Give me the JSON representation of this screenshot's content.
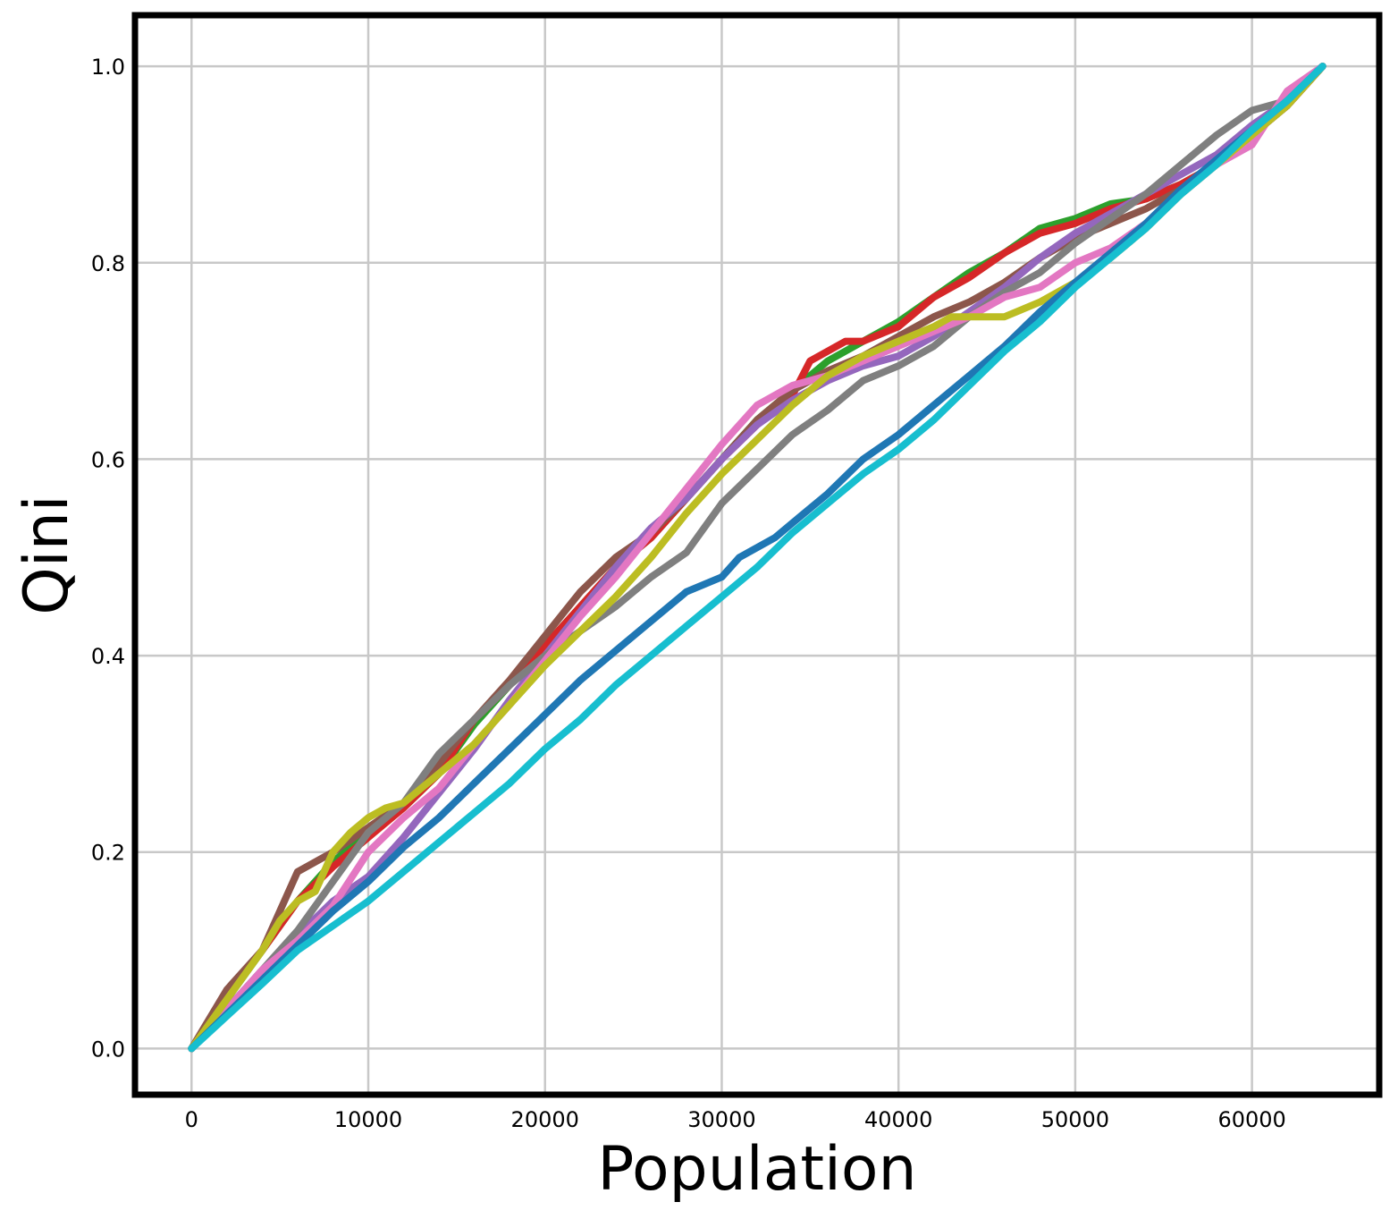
{
  "chart_data": {
    "type": "line",
    "title": "",
    "xlabel": "Population",
    "ylabel": "Qini",
    "xlim": [
      -3200,
      67200
    ],
    "ylim": [
      -0.047,
      1.052
    ],
    "xticks": [
      0,
      10000,
      20000,
      30000,
      40000,
      50000,
      60000
    ],
    "xtick_labels": [
      "0",
      "10000",
      "20000",
      "30000",
      "40000",
      "50000",
      "60000"
    ],
    "yticks": [
      0.0,
      0.2,
      0.4,
      0.6,
      0.8,
      1.0
    ],
    "ytick_labels": [
      "0.0",
      "0.2",
      "0.4",
      "0.6",
      "0.8",
      "1.0"
    ],
    "grid": true,
    "legend": "none",
    "series": [
      {
        "color": "#2ca02c",
        "x": [
          0,
          2000,
          4000,
          6000,
          8000,
          10000,
          12000,
          14000,
          16000,
          18000,
          20000,
          22000,
          24000,
          26000,
          28000,
          30000,
          32000,
          34000,
          36000,
          38000,
          40000,
          42000,
          44000,
          46000,
          48000,
          50000,
          52000,
          54000,
          56000,
          58000,
          60000,
          62000,
          64000
        ],
        "y": [
          0,
          0.05,
          0.1,
          0.15,
          0.19,
          0.22,
          0.245,
          0.28,
          0.33,
          0.37,
          0.41,
          0.45,
          0.49,
          0.52,
          0.56,
          0.6,
          0.64,
          0.67,
          0.7,
          0.72,
          0.74,
          0.765,
          0.79,
          0.81,
          0.835,
          0.845,
          0.86,
          0.865,
          0.88,
          0.9,
          0.93,
          0.96,
          1.0
        ]
      },
      {
        "color": "#d62728",
        "x": [
          0,
          2000,
          4000,
          6000,
          8000,
          10000,
          12000,
          14000,
          16000,
          18000,
          20000,
          22000,
          24000,
          26000,
          28000,
          30000,
          32000,
          34000,
          35000,
          36000,
          37000,
          38000,
          40000,
          42000,
          44000,
          46000,
          48000,
          50000,
          52000,
          54000,
          56000,
          58000,
          60000,
          62000,
          63000,
          64000
        ],
        "y": [
          0,
          0.055,
          0.1,
          0.15,
          0.185,
          0.215,
          0.245,
          0.28,
          0.335,
          0.37,
          0.41,
          0.45,
          0.49,
          0.52,
          0.56,
          0.6,
          0.635,
          0.665,
          0.7,
          0.71,
          0.72,
          0.72,
          0.735,
          0.765,
          0.785,
          0.81,
          0.83,
          0.84,
          0.855,
          0.865,
          0.88,
          0.9,
          0.93,
          0.96,
          0.98,
          1.0
        ]
      },
      {
        "color": "#8c564b",
        "x": [
          0,
          2000,
          4000,
          6000,
          8000,
          10000,
          12000,
          14000,
          16000,
          18000,
          20000,
          22000,
          24000,
          26000,
          28000,
          30000,
          32000,
          34000,
          36000,
          38000,
          40000,
          42000,
          44000,
          46000,
          48000,
          50000,
          52000,
          54000,
          56000,
          58000,
          60000,
          62000,
          64000
        ],
        "y": [
          0,
          0.06,
          0.1,
          0.18,
          0.2,
          0.225,
          0.25,
          0.29,
          0.335,
          0.375,
          0.42,
          0.465,
          0.5,
          0.525,
          0.56,
          0.6,
          0.64,
          0.67,
          0.69,
          0.705,
          0.725,
          0.745,
          0.76,
          0.78,
          0.805,
          0.825,
          0.84,
          0.855,
          0.875,
          0.9,
          0.93,
          0.96,
          1.0
        ]
      },
      {
        "color": "#9467bd",
        "x": [
          0,
          2000,
          4000,
          6000,
          8000,
          10000,
          12000,
          14000,
          16000,
          18000,
          20000,
          22000,
          24000,
          26000,
          28000,
          30000,
          32000,
          34000,
          36000,
          38000,
          40000,
          42000,
          44000,
          46000,
          48000,
          50000,
          52000,
          54000,
          56000,
          58000,
          60000,
          62000,
          64000
        ],
        "y": [
          0,
          0.04,
          0.08,
          0.115,
          0.15,
          0.175,
          0.215,
          0.26,
          0.305,
          0.355,
          0.4,
          0.445,
          0.49,
          0.53,
          0.56,
          0.6,
          0.635,
          0.66,
          0.68,
          0.695,
          0.705,
          0.725,
          0.75,
          0.775,
          0.805,
          0.83,
          0.85,
          0.87,
          0.89,
          0.91,
          0.94,
          0.965,
          1.0
        ]
      },
      {
        "color": "#7f7f7f",
        "x": [
          0,
          2000,
          4000,
          6000,
          8000,
          10000,
          12000,
          14000,
          16000,
          18000,
          20000,
          22000,
          24000,
          26000,
          28000,
          30000,
          32000,
          34000,
          36000,
          38000,
          40000,
          42000,
          44000,
          46000,
          48000,
          50000,
          52000,
          54000,
          56000,
          58000,
          60000,
          62000,
          64000
        ],
        "y": [
          0,
          0.04,
          0.08,
          0.12,
          0.17,
          0.22,
          0.25,
          0.3,
          0.335,
          0.37,
          0.4,
          0.425,
          0.45,
          0.48,
          0.505,
          0.555,
          0.59,
          0.625,
          0.65,
          0.68,
          0.695,
          0.715,
          0.745,
          0.77,
          0.79,
          0.82,
          0.845,
          0.87,
          0.9,
          0.93,
          0.955,
          0.965,
          1.0
        ]
      },
      {
        "color": "#e377c2",
        "x": [
          0,
          2000,
          4000,
          6000,
          8000,
          10000,
          12000,
          14000,
          16000,
          18000,
          20000,
          22000,
          24000,
          26000,
          28000,
          30000,
          32000,
          34000,
          36000,
          38000,
          40000,
          42000,
          44000,
          46000,
          48000,
          50000,
          52000,
          54000,
          56000,
          58000,
          60000,
          62000,
          64000
        ],
        "y": [
          0,
          0.04,
          0.08,
          0.11,
          0.145,
          0.2,
          0.235,
          0.265,
          0.31,
          0.35,
          0.395,
          0.44,
          0.48,
          0.525,
          0.57,
          0.615,
          0.655,
          0.675,
          0.685,
          0.7,
          0.715,
          0.73,
          0.745,
          0.765,
          0.775,
          0.8,
          0.815,
          0.84,
          0.87,
          0.9,
          0.92,
          0.975,
          1.0
        ]
      },
      {
        "color": "#bcbd22",
        "x": [
          0,
          2000,
          4000,
          5000,
          6000,
          7000,
          8000,
          9000,
          10000,
          11000,
          12000,
          14000,
          16000,
          18000,
          20000,
          22000,
          24000,
          26000,
          28000,
          30000,
          32000,
          34000,
          36000,
          38000,
          40000,
          42000,
          43000,
          44000,
          45000,
          46000,
          48000,
          50000,
          52000,
          54000,
          56000,
          58000,
          60000,
          62000,
          64000
        ],
        "y": [
          0,
          0.05,
          0.1,
          0.13,
          0.15,
          0.16,
          0.2,
          0.22,
          0.235,
          0.245,
          0.25,
          0.28,
          0.31,
          0.35,
          0.39,
          0.425,
          0.46,
          0.5,
          0.545,
          0.585,
          0.62,
          0.655,
          0.685,
          0.705,
          0.72,
          0.735,
          0.745,
          0.745,
          0.745,
          0.745,
          0.76,
          0.78,
          0.805,
          0.835,
          0.87,
          0.9,
          0.93,
          0.96,
          1.0
        ]
      },
      {
        "color": "#1f77b4",
        "x": [
          0,
          2000,
          4000,
          6000,
          8000,
          10000,
          12000,
          14000,
          16000,
          18000,
          20000,
          22000,
          24000,
          26000,
          28000,
          30000,
          31000,
          32000,
          33000,
          34000,
          36000,
          38000,
          40000,
          42000,
          44000,
          46000,
          48000,
          50000,
          52000,
          54000,
          56000,
          58000,
          60000,
          62000,
          64000
        ],
        "y": [
          0,
          0.035,
          0.07,
          0.105,
          0.14,
          0.17,
          0.205,
          0.235,
          0.27,
          0.305,
          0.34,
          0.375,
          0.405,
          0.435,
          0.465,
          0.48,
          0.5,
          0.51,
          0.52,
          0.535,
          0.565,
          0.6,
          0.625,
          0.655,
          0.685,
          0.715,
          0.75,
          0.78,
          0.81,
          0.84,
          0.875,
          0.905,
          0.935,
          0.965,
          1.0
        ]
      },
      {
        "color": "#17becf",
        "x": [
          0,
          2000,
          4000,
          6000,
          8000,
          10000,
          12000,
          14000,
          16000,
          18000,
          20000,
          22000,
          24000,
          26000,
          28000,
          30000,
          32000,
          34000,
          36000,
          38000,
          40000,
          42000,
          44000,
          46000,
          48000,
          50000,
          52000,
          54000,
          56000,
          58000,
          60000,
          62000,
          64000
        ],
        "y": [
          0,
          0.033,
          0.066,
          0.1,
          0.125,
          0.15,
          0.18,
          0.21,
          0.24,
          0.27,
          0.305,
          0.335,
          0.37,
          0.4,
          0.43,
          0.46,
          0.49,
          0.525,
          0.555,
          0.585,
          0.61,
          0.64,
          0.675,
          0.71,
          0.74,
          0.775,
          0.805,
          0.835,
          0.87,
          0.9,
          0.935,
          0.965,
          1.0
        ]
      }
    ]
  }
}
